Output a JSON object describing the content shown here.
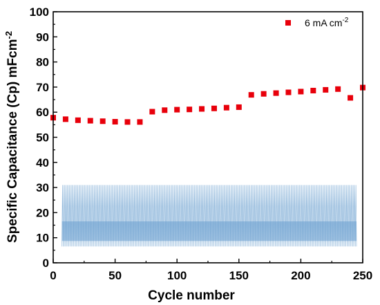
{
  "chart_data": {
    "type": "scatter",
    "xlabel": "Cycle number",
    "ylabel": "Specific Capacitance (Cp) mFcm",
    "ylabel_superscript": "-2",
    "xlim": [
      0,
      250
    ],
    "ylim": [
      0,
      100
    ],
    "x_ticks": [
      "0",
      "50",
      "100",
      "150",
      "200",
      "250"
    ],
    "y_ticks": [
      "0",
      "10",
      "20",
      "30",
      "40",
      "50",
      "60",
      "70",
      "80",
      "90",
      "100"
    ],
    "grid": false,
    "legend_position": "top-right",
    "series": [
      {
        "name": "6 mA cm",
        "name_superscript": "-2",
        "color": "#e8000b",
        "marker": "square",
        "x": [
          0,
          10,
          20,
          30,
          40,
          50,
          60,
          70,
          80,
          90,
          100,
          110,
          120,
          130,
          140,
          150,
          160,
          170,
          180,
          190,
          200,
          210,
          220,
          230,
          240,
          250
        ],
        "y": [
          57.8,
          57.2,
          56.8,
          56.6,
          56.4,
          56.2,
          56.1,
          56.1,
          60.2,
          60.8,
          61.0,
          61.1,
          61.3,
          61.5,
          61.8,
          62.0,
          66.9,
          67.3,
          67.6,
          67.9,
          68.2,
          68.6,
          68.9,
          69.2,
          65.7,
          69.8
        ]
      }
    ],
    "inset": {
      "description": "galvanostatic charge-discharge cycles",
      "color": "#6a9fcf",
      "x_range": [
        7,
        245
      ],
      "y_min": 6.5,
      "y_max": 31,
      "y_dense_upper": 16.5,
      "y_dense_lower": 8.7,
      "cycles": 250
    }
  }
}
